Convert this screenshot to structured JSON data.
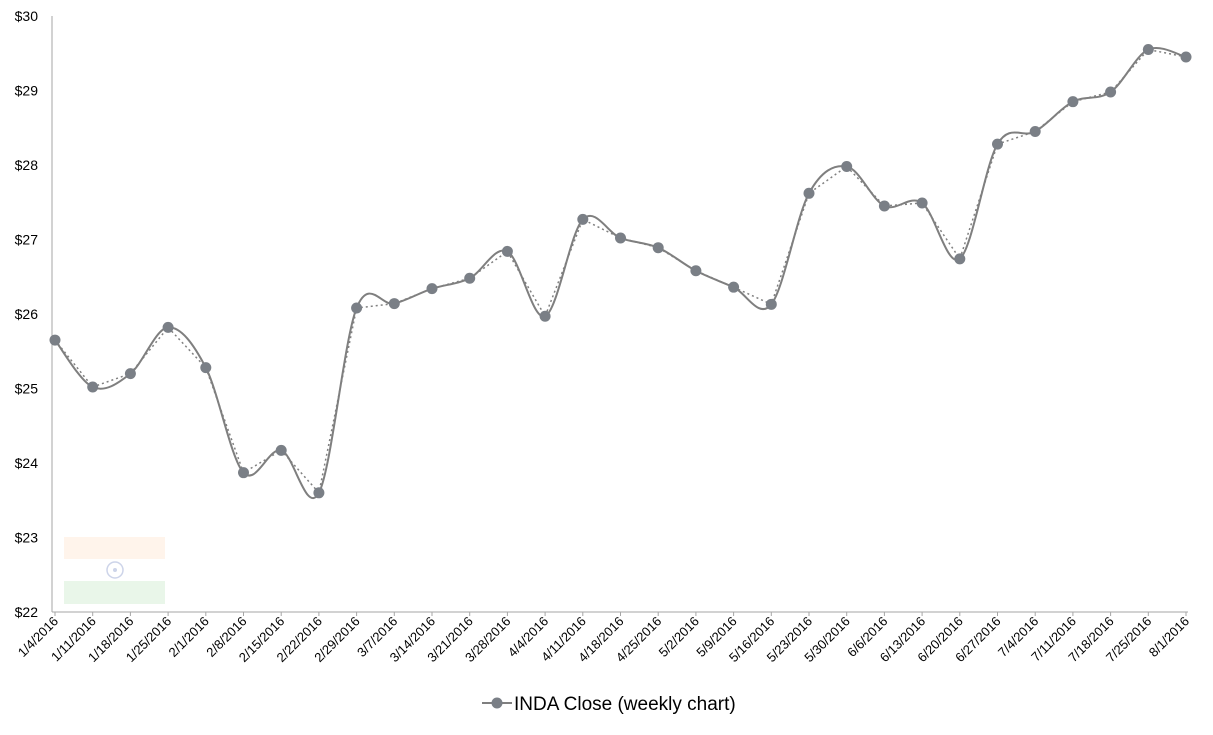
{
  "chart_data": {
    "type": "line",
    "title": "",
    "xlabel": "",
    "ylabel": "",
    "ylim": [
      22,
      30
    ],
    "yticks": [
      "$22",
      "$23",
      "$24",
      "$25",
      "$26",
      "$27",
      "$28",
      "$29",
      "$30"
    ],
    "grid": false,
    "legend_position": "bottom",
    "categories": [
      "1/4/2016",
      "1/11/2016",
      "1/18/2016",
      "1/25/2016",
      "2/1/2016",
      "2/8/2016",
      "2/15/2016",
      "2/22/2016",
      "2/29/2016",
      "3/7/2016",
      "3/14/2016",
      "3/21/2016",
      "3/28/2016",
      "4/4/2016",
      "4/11/2016",
      "4/18/2016",
      "4/25/2016",
      "5/2/2016",
      "5/9/2016",
      "5/16/2016",
      "5/23/2016",
      "5/30/2016",
      "6/6/2016",
      "6/13/2016",
      "6/20/2016",
      "6/27/2016",
      "7/4/2016",
      "7/11/2016",
      "7/18/2016",
      "7/25/2016",
      "8/1/2016"
    ],
    "series": [
      {
        "name": "INDA Close (weekly chart)",
        "color": "#7f7f7f",
        "marker_color": "#7a7f86",
        "values": [
          25.65,
          25.02,
          25.2,
          25.82,
          25.28,
          23.87,
          24.17,
          23.6,
          26.08,
          26.14,
          26.34,
          26.48,
          26.84,
          25.97,
          27.27,
          27.02,
          26.89,
          26.58,
          26.36,
          26.13,
          27.62,
          27.98,
          27.45,
          27.49,
          26.74,
          28.28,
          28.45,
          28.85,
          28.98,
          29.55,
          29.45
        ]
      }
    ],
    "trendline": {
      "style": "dotted",
      "color": "#808080"
    }
  },
  "decoration": {
    "watermark_icon": "india-flag-icon"
  }
}
